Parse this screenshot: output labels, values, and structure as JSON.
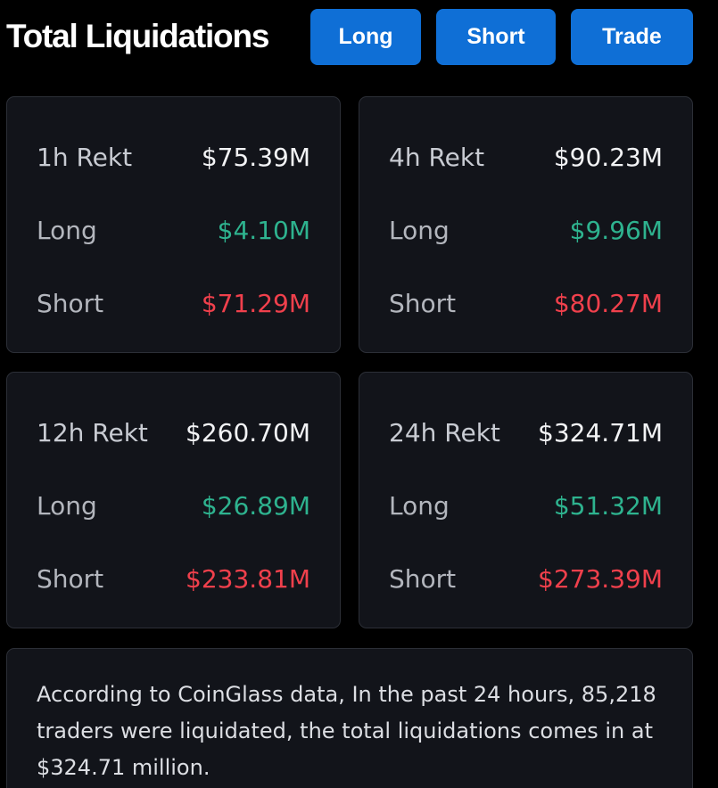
{
  "header": {
    "title": "Total Liquidations",
    "buttons": {
      "long": "Long",
      "short": "Short",
      "trade": "Trade"
    }
  },
  "cards": {
    "h1": {
      "rekt_label": "1h Rekt",
      "total": "$75.39M",
      "long_label": "Long",
      "long_value": "$4.10M",
      "short_label": "Short",
      "short_value": "$71.29M"
    },
    "h4": {
      "rekt_label": "4h Rekt",
      "total": "$90.23M",
      "long_label": "Long",
      "long_value": "$9.96M",
      "short_label": "Short",
      "short_value": "$80.27M"
    },
    "h12": {
      "rekt_label": "12h Rekt",
      "total": "$260.70M",
      "long_label": "Long",
      "long_value": "$26.89M",
      "short_label": "Short",
      "short_value": "$233.81M"
    },
    "h24": {
      "rekt_label": "24h Rekt",
      "total": "$324.71M",
      "long_label": "Long",
      "long_value": "$51.32M",
      "short_label": "Short",
      "short_value": "$273.39M"
    }
  },
  "summary": {
    "text": "According to CoinGlass data, In the past 24 hours, 85,218 traders were liquidated, the total liquidations comes in at $324.71 million."
  },
  "colors": {
    "background": "#000000",
    "card": "#12141a",
    "button": "#0f6fd6",
    "long": "#2eb38f",
    "short": "#f0404c"
  }
}
